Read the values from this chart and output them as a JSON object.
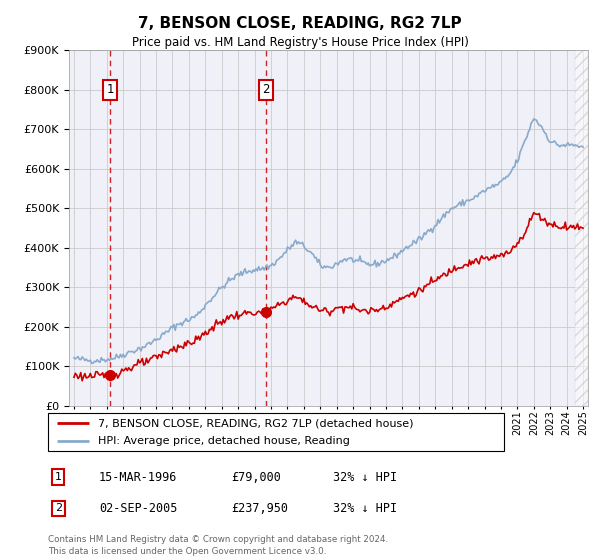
{
  "title": "7, BENSON CLOSE, READING, RG2 7LP",
  "subtitle": "Price paid vs. HM Land Registry's House Price Index (HPI)",
  "legend_line1": "7, BENSON CLOSE, READING, RG2 7LP (detached house)",
  "legend_line2": "HPI: Average price, detached house, Reading",
  "footer": "Contains HM Land Registry data © Crown copyright and database right 2024.\nThis data is licensed under the Open Government Licence v3.0.",
  "annotation1": {
    "label": "1",
    "date": "15-MAR-1996",
    "price": "£79,000",
    "hpi": "32% ↓ HPI"
  },
  "annotation2": {
    "label": "2",
    "date": "02-SEP-2005",
    "price": "£237,950",
    "hpi": "32% ↓ HPI"
  },
  "vline1_x": 1996.21,
  "vline2_x": 2005.67,
  "sale1_x": 1996.21,
  "sale1_y": 79000,
  "sale2_x": 2005.67,
  "sale2_y": 237950,
  "ylim": [
    0,
    900000
  ],
  "xlim": [
    1993.7,
    2025.3
  ],
  "red_color": "#cc0000",
  "blue_color": "#88aacc",
  "grid_color": "#cccccc",
  "background_color": "#ffffff",
  "plot_bg_color": "#f0f0f8"
}
